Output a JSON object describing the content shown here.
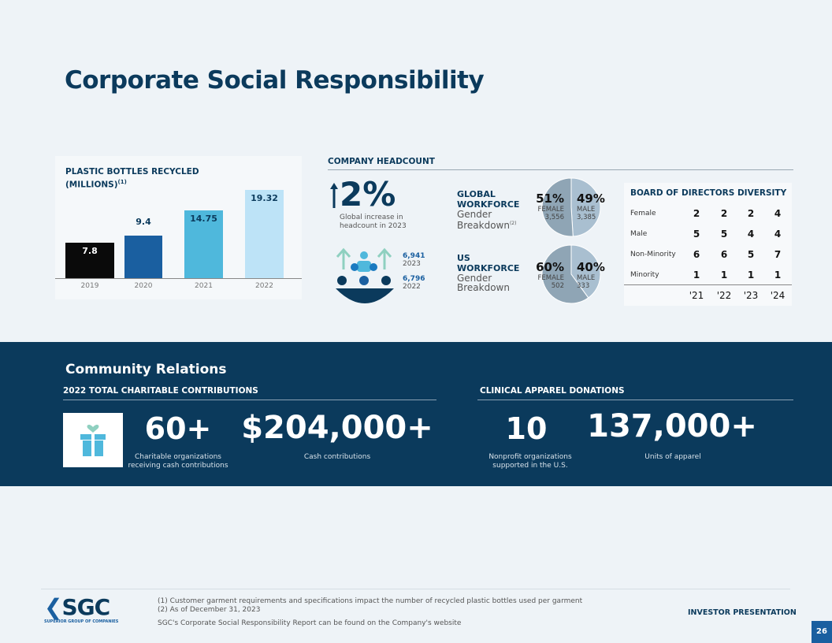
{
  "title": "Corporate Social Responsibility",
  "chart_data": {
    "type": "bar",
    "title": "PLASTIC BOTTLES RECYCLED (MILLIONS)(1)",
    "categories": [
      "2019",
      "2020",
      "2021",
      "2022"
    ],
    "values": [
      7.8,
      9.4,
      14.75,
      19.32
    ],
    "labels": [
      "7.8",
      "9.4",
      "14.75",
      "19.32"
    ],
    "colors": [
      "#0a0a0a",
      "#1a5fa0",
      "#4fb8dc",
      "#bde3f7"
    ],
    "ylim": [
      0,
      19.32
    ],
    "grid": false
  },
  "chart_title_1": "PLASTIC BOTTLES RECYCLED",
  "chart_title_2": "(MILLIONS)",
  "chart_title_sup": "(1)",
  "headcount": {
    "header": "COMPANY HEADCOUNT",
    "increase": "2%",
    "increase_caption_1": "Global increase in",
    "increase_caption_2": "headcount in 2023",
    "count_2023": "6,941",
    "year_2023": "2023",
    "count_2022": "6,796",
    "year_2022": "2022",
    "global": {
      "title_1": "GLOBAL",
      "title_2": "WORKFORCE",
      "sub_1": "Gender",
      "sub_2": "Breakdown",
      "sup": "(2)",
      "female_pct": "51%",
      "male_pct": "49%",
      "female_label": "FEMALE",
      "male_label": "MALE",
      "female_count": "3,556",
      "male_count": "3,385",
      "female_share": 51
    },
    "us": {
      "title_1": "US",
      "title_2": "WORKFORCE",
      "sub_1": "Gender",
      "sub_2": "Breakdown",
      "female_pct": "60%",
      "male_pct": "40%",
      "female_label": "FEMALE",
      "male_label": "MALE",
      "female_count": "502",
      "male_count": "333",
      "female_share": 60
    }
  },
  "board": {
    "title": "BOARD OF DIRECTORS DIVERSITY",
    "years": [
      "'21",
      "'22",
      "'23",
      "'24"
    ],
    "rows": [
      {
        "label": "Female",
        "values": [
          "2",
          "2",
          "2",
          "4"
        ]
      },
      {
        "label": "Male",
        "values": [
          "5",
          "5",
          "4",
          "4"
        ]
      },
      {
        "label": "Non-Minority",
        "values": [
          "6",
          "6",
          "5",
          "7"
        ]
      },
      {
        "label": "Minority",
        "values": [
          "1",
          "1",
          "1",
          "1"
        ]
      }
    ]
  },
  "community": {
    "title": "Community Relations",
    "left_header": "2022 TOTAL CHARITABLE CONTRIBUTIONS",
    "right_header": "CLINICAL APPAREL DONATIONS",
    "stats": [
      {
        "value": "60+",
        "caption_1": "Charitable organizations",
        "caption_2": "receiving cash contributions"
      },
      {
        "value": "$204,000+",
        "caption_1": "Cash contributions",
        "caption_2": ""
      },
      {
        "value": "10",
        "caption_1": "Nonprofit organizations",
        "caption_2": "supported in the U.S."
      },
      {
        "value": "137,000+",
        "caption_1": "Units of apparel",
        "caption_2": ""
      }
    ]
  },
  "footer": {
    "logo": "SGC",
    "logo_sub": "SUPERIOR GROUP OF COMPANIES",
    "note1": "(1) Customer garment requirements and specifications impact the number of recycled plastic bottles used per garment",
    "note2": "(2) As of December 31, 2023",
    "note3": "SGC's Corporate Social Responsibility Report can be found on the Company's website",
    "right": "INVESTOR PRESENTATION",
    "page": "26"
  }
}
